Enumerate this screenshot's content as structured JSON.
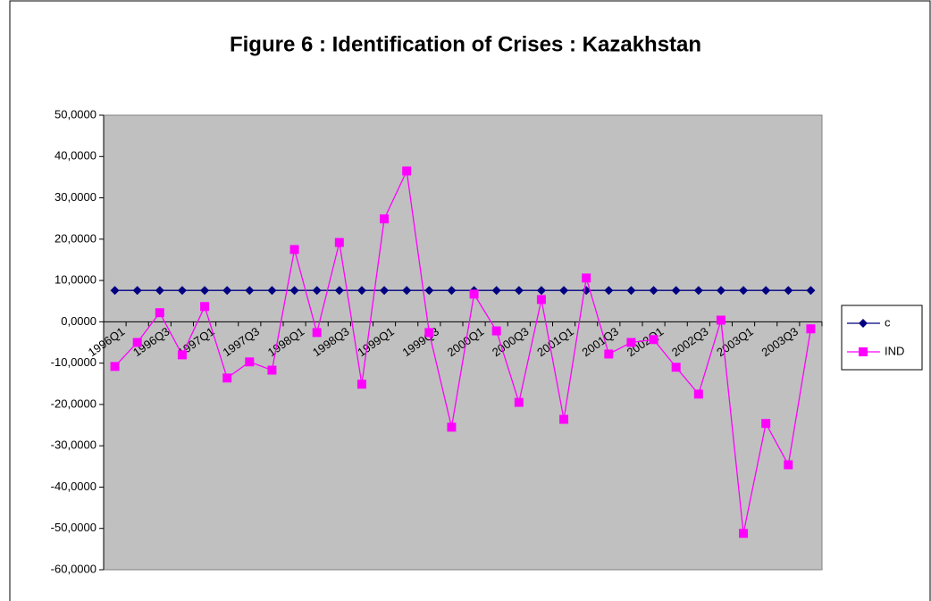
{
  "chart_data": {
    "type": "line",
    "title": "Figure 6 : Identification of Crises : Kazakhstan",
    "categories": [
      "1996Q1",
      null,
      "1996Q3",
      null,
      "1997Q1",
      null,
      "1997Q3",
      null,
      "1998Q1",
      null,
      "1998Q3",
      null,
      "1999Q1",
      null,
      "1999Q3",
      null,
      "2000Q1",
      null,
      "2000Q3",
      null,
      "2001Q1",
      null,
      "2001Q3",
      null,
      "2002Q1",
      null,
      "2002Q3",
      null,
      "2003Q1",
      null,
      "2003Q3",
      null
    ],
    "series": [
      {
        "name": "c",
        "color": "#000080",
        "marker": "diamond",
        "values": [
          7.6,
          7.6,
          7.6,
          7.6,
          7.6,
          7.6,
          7.6,
          7.6,
          7.6,
          7.6,
          7.6,
          7.6,
          7.6,
          7.6,
          7.6,
          7.6,
          7.6,
          7.6,
          7.6,
          7.6,
          7.6,
          7.6,
          7.6,
          7.6,
          7.6,
          7.6,
          7.6,
          7.6,
          7.6,
          7.6,
          7.6,
          7.6
        ]
      },
      {
        "name": "IND",
        "color": "#ff00ff",
        "marker": "square",
        "values": [
          -10.8,
          -5,
          2.2,
          -8,
          3.7,
          -13.6,
          -9.7,
          -11.7,
          17.5,
          -2.6,
          19.2,
          -15.1,
          24.9,
          36.5,
          -2.6,
          -25.5,
          6.7,
          -2.2,
          -19.5,
          5.4,
          -23.6,
          10.6,
          -7.8,
          -5,
          -4.3,
          -11,
          -17.5,
          0.4,
          -51.2,
          -24.6,
          -34.6,
          -1.7
        ]
      }
    ],
    "ylim": [
      -60,
      50
    ],
    "yticks": [
      {
        "value": -60,
        "label": "-60,0000"
      },
      {
        "value": -50,
        "label": "-50,0000"
      },
      {
        "value": -40,
        "label": "-40,0000"
      },
      {
        "value": -30,
        "label": "-30,0000"
      },
      {
        "value": -20,
        "label": "-20,0000"
      },
      {
        "value": -10,
        "label": "-10,0000"
      },
      {
        "value": 0,
        "label": "0,0000"
      },
      {
        "value": 10,
        "label": "10,0000"
      },
      {
        "value": 20,
        "label": "20,0000"
      },
      {
        "value": 30,
        "label": "30,0000"
      },
      {
        "value": 40,
        "label": "40,0000"
      },
      {
        "value": 50,
        "label": "50,0000"
      }
    ],
    "grid": false,
    "legend": "right",
    "plot_background": "#c0c0c0"
  }
}
